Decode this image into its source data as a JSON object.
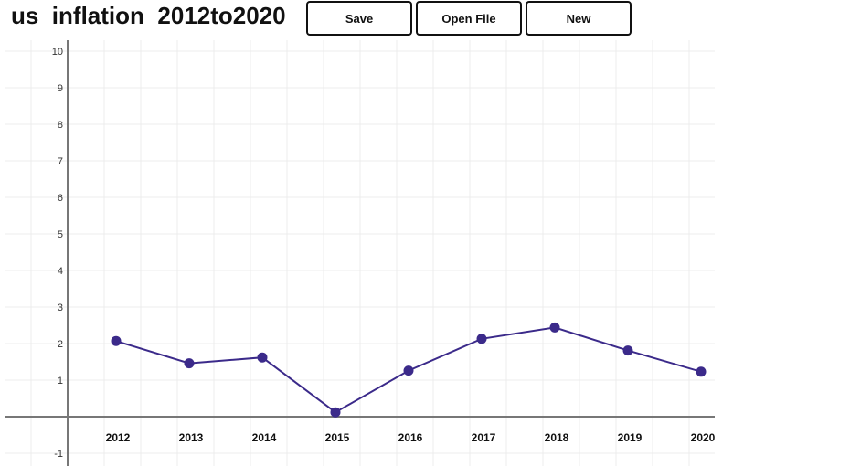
{
  "app": {
    "document_title": "us_inflation_2012to2020"
  },
  "toolbar": {
    "save_label": "Save",
    "open_label": "Open File",
    "new_label": "New"
  },
  "chart_data": {
    "type": "line",
    "title": "",
    "xlabel": "",
    "ylabel": "",
    "categories": [
      "2012",
      "2013",
      "2014",
      "2015",
      "2016",
      "2017",
      "2018",
      "2019",
      "2020"
    ],
    "series": [
      {
        "values": [
          2.07,
          1.46,
          1.62,
          0.12,
          1.26,
          2.13,
          2.44,
          1.81,
          1.23
        ],
        "color": "#3b2a8a"
      }
    ],
    "ylim": [
      -1,
      10
    ],
    "yticks": [
      "-1",
      "1",
      "2",
      "3",
      "4",
      "5",
      "6",
      "7",
      "8",
      "9",
      "10"
    ],
    "grid": true,
    "legend": "none"
  }
}
